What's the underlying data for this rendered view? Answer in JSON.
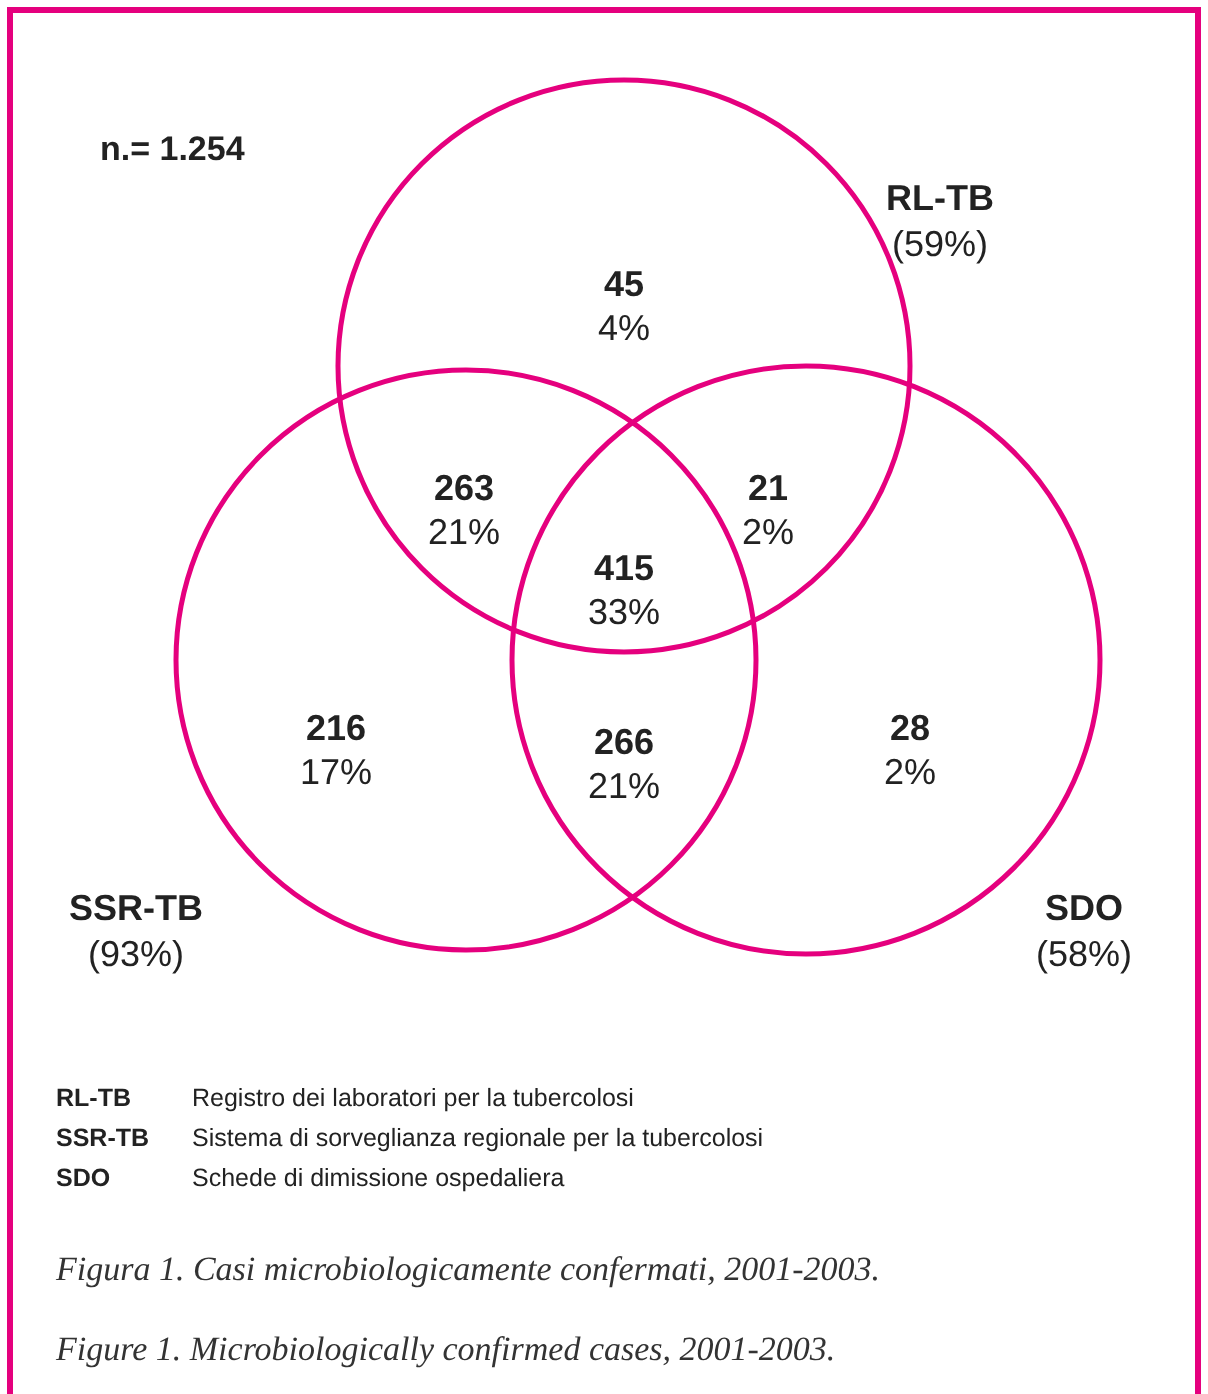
{
  "chart_data": {
    "type": "other",
    "title": "Figura 1. Casi microbiologicamente confermati, 2001-2003.",
    "subtitle": "Figure 1. Microbiologically confirmed cases, 2001-2003.",
    "categories": [
      "45",
      "263",
      "21",
      "415",
      "216",
      "266",
      "28"
    ],
    "values": [
      4,
      21,
      2,
      33,
      17,
      21,
      2
    ],
    "value_labels": [
      "4%",
      "21%",
      "2%",
      "33%",
      "17%",
      "21%",
      "2%"
    ],
    "annotations": [
      "n.= 1.254",
      "RL-TB\n(59%)",
      "SSR-TB\n(93%)",
      "SDO\n(58%)",
      "RL-TB Registro dei laboratori per la tubercolosi",
      "SSR-TB Sistema di sorveglianza regionale per la tubercolosi",
      "SDO Schede di dimissione ospedaliera"
    ]
  }
}
